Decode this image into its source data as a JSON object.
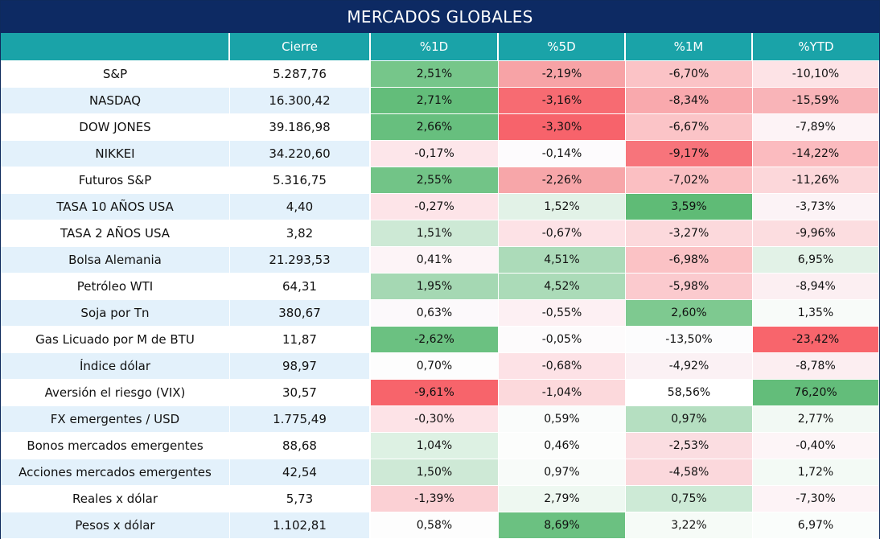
{
  "title": "MERCADOS GLOBALES",
  "headers": [
    "",
    "Cierre",
    "%1D",
    "%5D",
    "%1M",
    "%YTD"
  ],
  "rows": [
    {
      "name": "S&P",
      "cierre": "5.287,76",
      "d1": "2,51%",
      "d5": "-2,19%",
      "m1": "-6,70%",
      "ytd": "-10,10%"
    },
    {
      "name": "NASDAQ",
      "cierre": "16.300,42",
      "d1": "2,71%",
      "d5": "-3,16%",
      "m1": "-8,34%",
      "ytd": "-15,59%"
    },
    {
      "name": "DOW JONES",
      "cierre": "39.186,98",
      "d1": "2,66%",
      "d5": "-3,30%",
      "m1": "-6,67%",
      "ytd": "-7,89%"
    },
    {
      "name": "NIKKEI",
      "cierre": "34.220,60",
      "d1": "-0,17%",
      "d5": "-0,14%",
      "m1": "-9,17%",
      "ytd": "-14,22%"
    },
    {
      "name": "Futuros S&P",
      "cierre": "5.316,75",
      "d1": "2,55%",
      "d5": "-2,26%",
      "m1": "-7,02%",
      "ytd": "-11,26%"
    },
    {
      "name": "TASA 10 AÑOS USA",
      "cierre": "4,40",
      "d1": "-0,27%",
      "d5": "1,52%",
      "m1": "3,59%",
      "ytd": "-3,73%"
    },
    {
      "name": "TASA 2 AÑOS USA",
      "cierre": "3,82",
      "d1": "1,51%",
      "d5": "-0,67%",
      "m1": "-3,27%",
      "ytd": "-9,96%"
    },
    {
      "name": "Bolsa Alemania",
      "cierre": "21.293,53",
      "d1": "0,41%",
      "d5": "4,51%",
      "m1": "-6,98%",
      "ytd": "6,95%"
    },
    {
      "name": "Petróleo WTI",
      "cierre": "64,31",
      "d1": "1,95%",
      "d5": "4,52%",
      "m1": "-5,98%",
      "ytd": "-8,94%"
    },
    {
      "name": "Soja por Tn",
      "cierre": "380,67",
      "d1": "0,63%",
      "d5": "-0,55%",
      "m1": "2,60%",
      "ytd": "1,35%"
    },
    {
      "name": "Gas Licuado por M de BTU",
      "cierre": "11,87",
      "d1": "-2,62%",
      "d5": "-0,05%",
      "m1": "-13,50%",
      "ytd": "-23,42%"
    },
    {
      "name": "Índice dólar",
      "cierre": "98,97",
      "d1": "0,70%",
      "d5": "-0,68%",
      "m1": "-4,92%",
      "ytd": "-8,78%"
    },
    {
      "name": "Aversión el riesgo (VIX)",
      "cierre": "30,57",
      "d1": "-9,61%",
      "d5": "-1,04%",
      "m1": "58,56%",
      "ytd": "76,20%"
    },
    {
      "name": "FX emergentes / USD",
      "cierre": "1.775,49",
      "d1": "-0,30%",
      "d5": "0,59%",
      "m1": "0,97%",
      "ytd": "2,77%"
    },
    {
      "name": "Bonos mercados emergentes",
      "cierre": "88,68",
      "d1": "1,04%",
      "d5": "0,46%",
      "m1": "-2,53%",
      "ytd": "-0,40%"
    },
    {
      "name": "Acciones mercados emergentes",
      "cierre": "42,54",
      "d1": "1,50%",
      "d5": "0,97%",
      "m1": "-4,58%",
      "ytd": "1,72%"
    },
    {
      "name": "Reales x dólar",
      "cierre": "5,73",
      "d1": "-1,39%",
      "d5": "2,79%",
      "m1": "0,75%",
      "ytd": "-7,30%"
    },
    {
      "name": "Pesos x dólar",
      "cierre": "1.102,81",
      "d1": "0,58%",
      "d5": "8,69%",
      "m1": "3,22%",
      "ytd": "6,97%"
    }
  ],
  "colors": {
    "title_bg": "#0d2a63",
    "header_bg": "#1aa3a8",
    "stripe": "#e3f1fb",
    "cell_fills": [
      [
        "#76c68a",
        "#f7a3a6",
        "#fbc3c6",
        "#fde3e6"
      ],
      [
        "#63bd7a",
        "#f76b72",
        "#f9a9ad",
        "#f9b4b8"
      ],
      [
        "#67bf7e",
        "#f7636b",
        "#fbc4c7",
        "#fdf3f6"
      ],
      [
        "#fde6ea",
        "#fdfbfd",
        "#f7747b",
        "#fbbbbf"
      ],
      [
        "#72c487",
        "#f7a6a9",
        "#fbbfc2",
        "#fcd7da"
      ],
      [
        "#fde4e8",
        "#e2f2e7",
        "#5fbb76",
        "#fcf3f6"
      ],
      [
        "#cde9d5",
        "#fde2e6",
        "#fcd9dc",
        "#fcdde0"
      ],
      [
        "#fdf4f7",
        "#acdbb9",
        "#fbc2c5",
        "#e2f2e7"
      ],
      [
        "#a5d8b3",
        "#abdbb8",
        "#fbcace",
        "#fcefF2"
      ],
      [
        "#fcf9fb",
        "#fdf0f3",
        "#7ec990",
        "#f8fbf9"
      ],
      [
        "#6bc181",
        "#fdfbfc",
        "#fcfcfd",
        "#f8656c"
      ],
      [
        "#fdfdfd",
        "#fde2e6",
        "#fbf1f4",
        "#fceef1"
      ],
      [
        "#f7646b",
        "#fcd9dc",
        "#ffffff",
        "#63bd7a"
      ],
      [
        "#fde3e7",
        "#fafcfb",
        "#b5dfc1",
        "#f2f9f4"
      ],
      [
        "#ddf1e3",
        "#fcfdfc",
        "#fbdde1",
        "#fdf5f7"
      ],
      [
        "#cee9d6",
        "#f8fbf9",
        "#fbd8dc",
        "#f3faf5"
      ],
      [
        "#fbd0d4",
        "#eef8f1",
        "#cdeaD6",
        "#fdf3f6"
      ],
      [
        "#fdfdfd",
        "#6bc181",
        "#f6fbf7",
        "#fafdfb"
      ]
    ]
  }
}
